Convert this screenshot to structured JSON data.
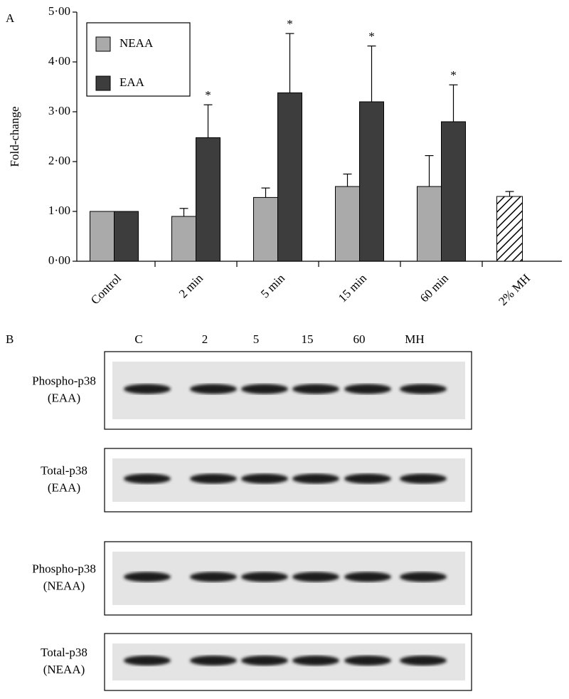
{
  "chart_data": {
    "type": "bar",
    "panel_label": "A",
    "ylabel": "Fold-change",
    "categories": [
      "Control",
      "2 min",
      "5 min",
      "15 min",
      "60 min",
      "2% MH"
    ],
    "series": [
      {
        "name": "NEAA",
        "color": "#aaaaaa",
        "values": [
          1.0,
          0.9,
          1.28,
          1.5,
          1.5,
          null
        ],
        "errors": [
          null,
          0.16,
          0.19,
          0.25,
          0.62,
          null
        ]
      },
      {
        "name": "EAA",
        "color": "#3d3d3d",
        "values": [
          1.0,
          2.48,
          3.38,
          3.2,
          2.8,
          null
        ],
        "errors": [
          null,
          0.66,
          1.19,
          1.12,
          0.74,
          null
        ]
      }
    ],
    "hatched_bar": {
      "value": 1.3,
      "error": 0.1
    },
    "significance": [
      null,
      "*",
      "*",
      "*",
      "*",
      null
    ],
    "ylim": [
      0,
      5
    ],
    "yticks": [
      {
        "value": 0,
        "label": "0·00"
      },
      {
        "value": 1,
        "label": "1·00"
      },
      {
        "value": 2,
        "label": "2·00"
      },
      {
        "value": 3,
        "label": "3·00"
      },
      {
        "value": 4,
        "label": "4·00"
      },
      {
        "value": 5,
        "label": "5·00"
      }
    ],
    "legend": "upper left"
  },
  "blot": {
    "panel_label": "B",
    "lanes": [
      "C",
      "2",
      "5",
      "15",
      "60",
      "MH"
    ],
    "rows": [
      {
        "protein": "Phospho-p38",
        "group": "(EAA)"
      },
      {
        "protein": "Total-p38",
        "group": "(EAA)"
      },
      {
        "protein": "Phospho-p38",
        "group": "(NEAA)"
      },
      {
        "protein": "Total-p38",
        "group": "(NEAA)"
      }
    ]
  }
}
